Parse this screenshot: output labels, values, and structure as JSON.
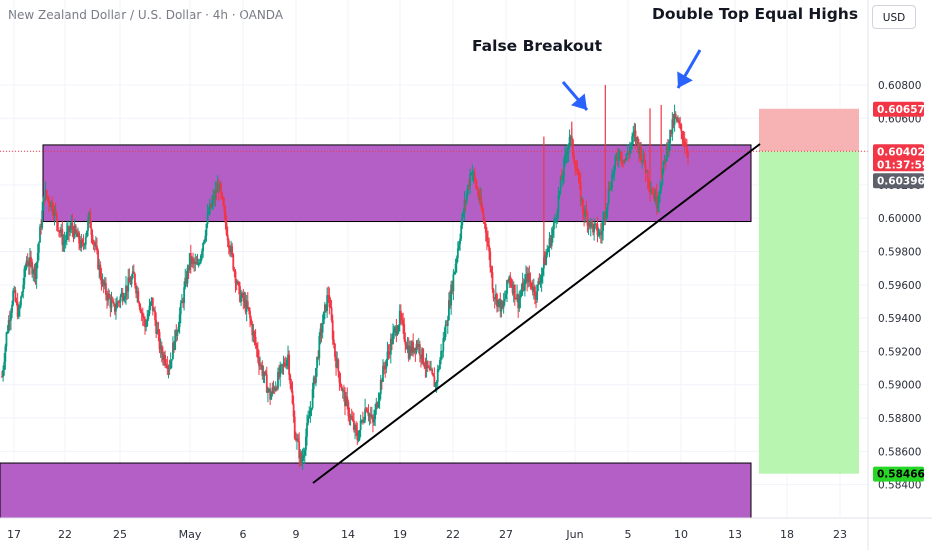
{
  "symbol_title": "New Zealand Dollar / U.S. Dollar · 4h · OANDA",
  "currency_button": "USD",
  "annotations": {
    "false_breakout": "False Breakout",
    "double_top": "Double Top Equal Highs"
  },
  "price_labels": {
    "stop": "0.60657",
    "current": "0.60402",
    "countdown": "01:37:59",
    "prev": "0.60396",
    "target": "0.58466"
  },
  "colors": {
    "up": "#089981",
    "down": "#f23645",
    "zone": "#b45fc6",
    "stop_zone": "#f7b3b3",
    "target_zone": "#b8f5b0",
    "arrow": "#2962ff",
    "stop_label": "#f23645",
    "current_label": "#f23645",
    "prev_label": "#5d606b",
    "target_label": "#27d627"
  },
  "chart_data": {
    "type": "candlestick",
    "ylim": [
      0.5835,
      0.6098
    ],
    "y_ticks": [
      "0.60800",
      "0.60600",
      "0.60400",
      "0.60200",
      "0.60000",
      "0.59800",
      "0.59600",
      "0.59400",
      "0.59200",
      "0.59000",
      "0.58800",
      "0.58600",
      "0.58400"
    ],
    "x_ticks": [
      "17",
      "22",
      "25",
      "May",
      "6",
      "9",
      "14",
      "19",
      "22",
      "27",
      "Jun",
      "5",
      "10",
      "13",
      "18",
      "23"
    ],
    "key_prices": {
      "zone_upper_top": 0.6044,
      "zone_upper_bottom": 0.5998,
      "zone_lower_top": 0.5853,
      "zone_lower_bottom": 0.5838,
      "stop": 0.60657,
      "entry": 0.60402,
      "target": 0.58466
    },
    "trendline": [
      [
        0.5845,
        0.0
      ],
      [
        0.6043,
        1.0
      ]
    ],
    "path": [
      [
        0.5905,
        0
      ],
      [
        0.593,
        4
      ],
      [
        0.5955,
        10
      ],
      [
        0.5942,
        15
      ],
      [
        0.5975,
        22
      ],
      [
        0.5968,
        30
      ],
      [
        0.6015,
        38
      ],
      [
        0.6008,
        45
      ],
      [
        0.5985,
        55
      ],
      [
        0.5995,
        62
      ],
      [
        0.5982,
        72
      ],
      [
        0.6,
        78
      ],
      [
        0.596,
        90
      ],
      [
        0.5945,
        100
      ],
      [
        0.5955,
        108
      ],
      [
        0.5965,
        118
      ],
      [
        0.5935,
        128
      ],
      [
        0.595,
        134
      ],
      [
        0.592,
        142
      ],
      [
        0.5912,
        150
      ],
      [
        0.5945,
        160
      ],
      [
        0.5975,
        168
      ],
      [
        0.597,
        175
      ],
      [
        0.6003,
        185
      ],
      [
        0.602,
        194
      ],
      [
        0.599,
        202
      ],
      [
        0.5955,
        212
      ],
      [
        0.5945,
        220
      ],
      [
        0.5915,
        230
      ],
      [
        0.5893,
        240
      ],
      [
        0.5905,
        248
      ],
      [
        0.5918,
        256
      ],
      [
        0.5872,
        262
      ],
      [
        0.5853,
        268
      ],
      [
        0.5885,
        276
      ],
      [
        0.593,
        285
      ],
      [
        0.5955,
        292
      ],
      [
        0.5918,
        298
      ],
      [
        0.5895,
        305
      ],
      [
        0.588,
        312
      ],
      [
        0.5868,
        318
      ],
      [
        0.5888,
        326
      ],
      [
        0.5876,
        332
      ],
      [
        0.5905,
        340
      ],
      [
        0.5925,
        348
      ],
      [
        0.594,
        356
      ],
      [
        0.592,
        364
      ],
      [
        0.5925,
        372
      ],
      [
        0.591,
        380
      ],
      [
        0.59,
        388
      ],
      [
        0.593,
        396
      ],
      [
        0.5965,
        404
      ],
      [
        0.6,
        412
      ],
      [
        0.603,
        420
      ],
      [
        0.6015,
        426
      ],
      [
        0.599,
        434
      ],
      [
        0.5955,
        440
      ],
      [
        0.5945,
        448
      ],
      [
        0.5965,
        454
      ],
      [
        0.595,
        462
      ],
      [
        0.5965,
        470
      ],
      [
        0.5955,
        478
      ],
      [
        0.5975,
        486
      ],
      [
        0.5995,
        494
      ],
      [
        0.602,
        500
      ],
      [
        0.605,
        508
      ],
      [
        0.603,
        514
      ],
      [
        0.6005,
        520
      ],
      [
        0.5995,
        528
      ],
      [
        0.599,
        536
      ],
      [
        0.602,
        544
      ],
      [
        0.604,
        552
      ],
      [
        0.6035,
        558
      ],
      [
        0.605,
        566
      ],
      [
        0.6035,
        574
      ],
      [
        0.602,
        580
      ],
      [
        0.601,
        586
      ],
      [
        0.603,
        592
      ],
      [
        0.6045,
        596
      ],
      [
        0.606,
        602
      ],
      [
        0.6052,
        608
      ],
      [
        0.604,
        614
      ]
    ],
    "highlight_wicks": [
      [
        485,
        0.6049
      ],
      [
        510,
        0.6058
      ],
      [
        540,
        0.608
      ],
      [
        580,
        0.6066
      ],
      [
        590,
        0.6068
      ]
    ]
  }
}
